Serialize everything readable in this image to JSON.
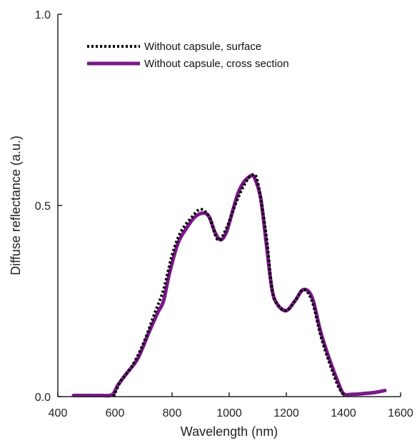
{
  "chart_data": {
    "type": "line",
    "xlabel": "Wavelength (nm)",
    "ylabel": "Diffuse reflectance (a.u.)",
    "xlim": [
      400,
      1600
    ],
    "ylim": [
      0,
      1
    ],
    "x_ticks": [
      400,
      600,
      800,
      1000,
      1200,
      1400,
      1600
    ],
    "x_tick_labels": [
      "400",
      "600",
      "800",
      "1000",
      "1200",
      "1400",
      "1600"
    ],
    "y_ticks": [
      0,
      0.5,
      1
    ],
    "y_tick_labels": [
      "0.0",
      "0.5",
      "1.0"
    ],
    "grid": false,
    "legend_position": "top-left",
    "series": [
      {
        "name": "Without capsule, surface",
        "color": "#000000",
        "style": "dotted",
        "x": [
          595,
          620,
          660,
          700,
          740,
          770,
          800,
          830,
          870,
          900,
          930,
          960,
          990,
          1020,
          1050,
          1080,
          1100,
          1130,
          1150,
          1170,
          1200,
          1230,
          1260,
          1290,
          1320,
          1350,
          1380,
          1400
        ],
        "y": [
          0.0,
          0.04,
          0.08,
          0.14,
          0.22,
          0.28,
          0.37,
          0.43,
          0.47,
          0.49,
          0.47,
          0.41,
          0.44,
          0.5,
          0.55,
          0.58,
          0.56,
          0.42,
          0.28,
          0.24,
          0.225,
          0.25,
          0.28,
          0.25,
          0.16,
          0.09,
          0.03,
          0.005
        ]
      },
      {
        "name": "Without capsule, cross section",
        "color": "#7a1889",
        "style": "solid",
        "x": [
          455,
          500,
          550,
          590,
          610,
          640,
          680,
          720,
          750,
          770,
          790,
          820,
          850,
          880,
          910,
          930,
          950,
          970,
          990,
          1010,
          1030,
          1050,
          1070,
          1080,
          1090,
          1110,
          1130,
          1150,
          1170,
          1200,
          1230,
          1260,
          1290,
          1320,
          1350,
          1380,
          1400,
          1430,
          1470,
          1510,
          1545
        ],
        "y": [
          0.003,
          0.003,
          0.003,
          0.005,
          0.03,
          0.06,
          0.1,
          0.17,
          0.22,
          0.25,
          0.32,
          0.4,
          0.44,
          0.47,
          0.48,
          0.47,
          0.43,
          0.41,
          0.43,
          0.48,
          0.53,
          0.56,
          0.575,
          0.578,
          0.57,
          0.52,
          0.4,
          0.28,
          0.24,
          0.225,
          0.25,
          0.28,
          0.26,
          0.17,
          0.1,
          0.04,
          0.008,
          0.006,
          0.008,
          0.011,
          0.016
        ]
      }
    ]
  }
}
